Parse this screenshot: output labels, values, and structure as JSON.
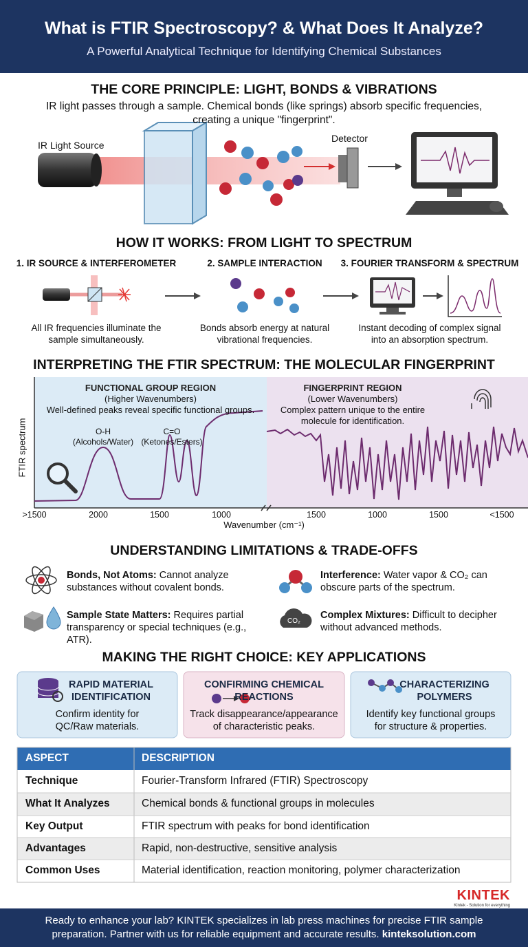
{
  "header": {
    "title": "What is FTIR Spectroscopy? & What Does It Analyze?",
    "subtitle": "A Powerful Analytical Technique for Identifying Chemical Substances"
  },
  "principle": {
    "title": "THE CORE PRINCIPLE: LIGHT, BONDS & VIBRATIONS",
    "description": [
      "IR light passes through a sample. Chemical bonds (like springs) absorb specific frequencies,",
      "creating a unique \"fingerprint\"."
    ],
    "source_label": "IR Light Source",
    "detector_label": "Detector"
  },
  "how": {
    "title": "HOW IT WORKS: FROM LIGHT TO SPECTRUM",
    "steps": [
      {
        "title": "1. IR SOURCE & INTERFEROMETER",
        "description": [
          "All IR frequencies illuminate the",
          "sample simultaneously."
        ]
      },
      {
        "title": "2. SAMPLE INTERACTION",
        "description": [
          "Bonds absorb energy at natural",
          "vibrational frequencies."
        ]
      },
      {
        "title": "3. FOURIER TRANSFORM & SPECTRUM",
        "description": [
          "Instant decoding of complex signal",
          "into an absorption spectrum."
        ]
      }
    ]
  },
  "spectrum": {
    "title": "INTERPRETING THE FTIR SPECTRUM: THE MOLECULAR FINGERPRINT",
    "regions": [
      {
        "title": "FUNCTIONAL GROUP REGION",
        "subtitle": "(Higher Wavenumbers)",
        "description": [
          "Well-defined peaks reveal specific functional groups."
        ]
      },
      {
        "title": "FINGERPRINT REGION",
        "subtitle": "(Lower Wavenumbers)",
        "description": [
          "Complex pattern unique to the entire",
          "molecule for identification."
        ]
      }
    ],
    "peaks": [
      {
        "label": "O-H",
        "note": "(Alcohols/Water)"
      },
      {
        "label": "C=O",
        "note": "(Ketones/Esters)"
      }
    ],
    "y_label": "FTIR spectrum",
    "x_label": "Wavenumber (cm⁻¹)",
    "xticks": [
      ">1500",
      "2000",
      "1500",
      "1000",
      "1500",
      "1000",
      "1500",
      "<1500"
    ]
  },
  "limitations": {
    "title": "UNDERSTANDING LIMITATIONS & TRADE-OFFS",
    "items": [
      {
        "label": "Bonds, Not Atoms:",
        "text": "Cannot analyze substances without covalent bonds."
      },
      {
        "label": "Interference:",
        "text": "Water vapor & CO₂ can obscure parts of the spectrum."
      },
      {
        "label": "Sample State Matters:",
        "text": "Requires partial transparency or special techniques (e.g., ATR)."
      },
      {
        "label": "Complex Mixtures:",
        "text": "Difficult to decipher without advanced methods."
      }
    ],
    "co2_icon": "CO₂"
  },
  "applications": {
    "title": "MAKING THE RIGHT CHOICE: KEY APPLICATIONS",
    "cards": [
      {
        "title": [
          "RAPID MATERIAL",
          "IDENTIFICATION"
        ],
        "description": [
          "Confirm identity for",
          "QC/Raw materials."
        ]
      },
      {
        "title": [
          "CONFIRMING CHEMICAL",
          "REACTIONS"
        ],
        "description": [
          "Track disappearance/appearance",
          "of characteristic peaks."
        ]
      },
      {
        "title": [
          "CHARACTERIZING",
          "POLYMERS"
        ],
        "description": [
          "Identify key functional groups",
          "for structure & properties."
        ]
      }
    ]
  },
  "table": {
    "columns": [
      "ASPECT",
      "DESCRIPTION"
    ],
    "rows": [
      [
        "Technique",
        "Fourier-Transform Infrared (FTIR) Spectroscopy"
      ],
      [
        "What It Analyzes",
        "Chemical bonds & functional groups in molecules"
      ],
      [
        "Key Output",
        "FTIR spectrum with peaks for bond identification"
      ],
      [
        "Advantages",
        "Rapid, non-destructive, sensitive analysis"
      ],
      [
        "Common Uses",
        "Material identification, reaction monitoring, polymer characterization"
      ]
    ]
  },
  "brand": {
    "name": "KINTEK",
    "tagline": "Kintek - Solution for everything"
  },
  "footer": {
    "lines": [
      "Ready to enhance your lab? KINTEK specializes in lab press machines for precise FTIR sample",
      "preparation. Partner with us for reliable equipment and accurate results."
    ],
    "link": "kinteksolution.com"
  }
}
